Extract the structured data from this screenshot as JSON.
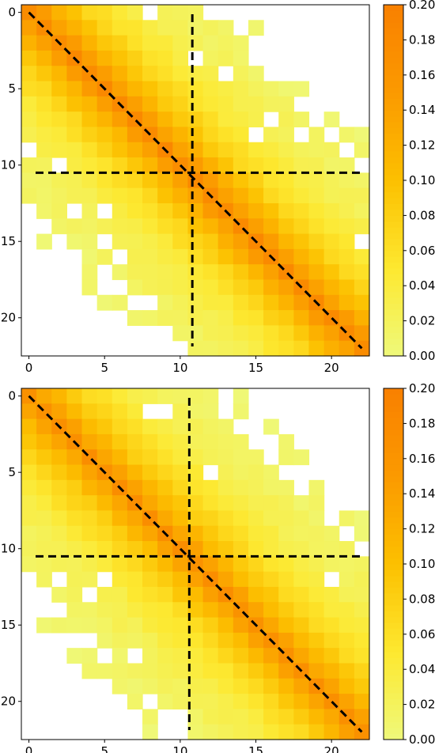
{
  "chart_data": [
    {
      "type": "heatmap",
      "title": "",
      "xlabel": "",
      "ylabel": "",
      "x_ticks": [
        "0",
        "5",
        "10",
        "15",
        "20"
      ],
      "y_ticks": [
        "0",
        "5",
        "10",
        "15",
        "20"
      ],
      "grid_size": 23,
      "colorbar": {
        "ticks": [
          "0.00",
          "0.02",
          "0.04",
          "0.06",
          "0.08",
          "0.10",
          "0.12",
          "0.14",
          "0.16",
          "0.18",
          "0.20"
        ],
        "range": [
          0,
          0.2
        ]
      },
      "colormap": [
        "#eef97a",
        "#fde830",
        "#fcc000",
        "#fb9a00",
        "#f98000"
      ],
      "diagonal_peak": 0.18,
      "dashed_lines": {
        "vertical_x": 10.8,
        "horizontal_y": 10.5,
        "diagonal": true
      },
      "grid": false
    },
    {
      "type": "heatmap",
      "title": "",
      "xlabel": "",
      "ylabel": "",
      "x_ticks": [
        "0",
        "5",
        "10",
        "15",
        "20"
      ],
      "y_ticks": [
        "0",
        "5",
        "10",
        "15",
        "20"
      ],
      "grid_size": 23,
      "colorbar": {
        "ticks": [
          "0.00",
          "0.02",
          "0.04",
          "0.06",
          "0.08",
          "0.10",
          "0.12",
          "0.14",
          "0.16",
          "0.18",
          "0.20"
        ],
        "range": [
          0,
          0.2
        ]
      },
      "colormap": [
        "#eef97a",
        "#fde830",
        "#fcc000",
        "#fb9a00",
        "#f98000"
      ],
      "diagonal_peak": 0.17,
      "dashed_lines": {
        "vertical_x": 10.6,
        "horizontal_y": 10.5,
        "diagonal": true
      },
      "grid": false
    }
  ]
}
